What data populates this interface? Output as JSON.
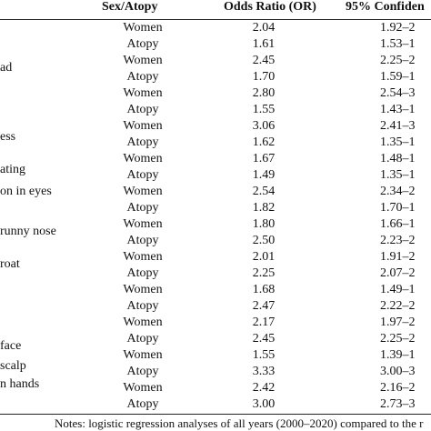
{
  "table": {
    "headers": {
      "sex_atopy": "Sex/Atopy",
      "odds_ratio": "Odds Ratio (OR)",
      "ci": "95% Confiden"
    },
    "side_labels": [
      "ad",
      "ess",
      "ating",
      "on in eyes",
      "runny nose",
      "roat",
      "face",
      "scalp",
      "n hands"
    ],
    "rows": [
      {
        "sex": "Women",
        "or": "2.04",
        "ci": "1.92–2"
      },
      {
        "sex": "Atopy",
        "or": "1.61",
        "ci": "1.53–1"
      },
      {
        "sex": "Women",
        "or": "2.45",
        "ci": "2.25–2"
      },
      {
        "sex": "Atopy",
        "or": "1.70",
        "ci": "1.59–1"
      },
      {
        "sex": "Women",
        "or": "2.80",
        "ci": "2.54–3"
      },
      {
        "sex": "Atopy",
        "or": "1.55",
        "ci": "1.43–1"
      },
      {
        "sex": "Women",
        "or": "3.06",
        "ci": "2.41–3"
      },
      {
        "sex": "Atopy",
        "or": "1.62",
        "ci": "1.35–1"
      },
      {
        "sex": "Women",
        "or": "1.67",
        "ci": "1.48–1"
      },
      {
        "sex": "Atopy",
        "or": "1.49",
        "ci": "1.35–1"
      },
      {
        "sex": "Women",
        "or": "2.54",
        "ci": "2.34–2"
      },
      {
        "sex": "Atopy",
        "or": "1.82",
        "ci": "1.70–1"
      },
      {
        "sex": "Women",
        "or": "1.80",
        "ci": "1.66–1"
      },
      {
        "sex": "Atopy",
        "or": "2.50",
        "ci": "2.23–2"
      },
      {
        "sex": "Women",
        "or": "2.01",
        "ci": "1.91–2"
      },
      {
        "sex": "Atopy",
        "or": "2.25",
        "ci": "2.07–2"
      },
      {
        "sex": "Women",
        "or": "1.68",
        "ci": "1.49–1"
      },
      {
        "sex": "Atopy",
        "or": "2.47",
        "ci": "2.22–2"
      },
      {
        "sex": "Women",
        "or": "2.17",
        "ci": "1.97–2"
      },
      {
        "sex": "Atopy",
        "or": "2.45",
        "ci": "2.25–2"
      },
      {
        "sex": "Women",
        "or": "1.55",
        "ci": "1.39–1"
      },
      {
        "sex": "Atopy",
        "or": "3.33",
        "ci": "3.00–3"
      },
      {
        "sex": "Women",
        "or": "2.42",
        "ci": "2.16–2"
      },
      {
        "sex": "Atopy",
        "or": "3.00",
        "ci": "2.73–3"
      }
    ],
    "notes": "Notes: logistic regression analyses of all years (2000–2020) compared to the r"
  }
}
